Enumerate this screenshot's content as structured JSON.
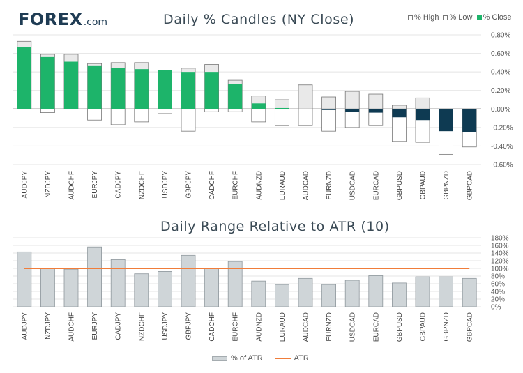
{
  "brand": {
    "logo_main": "FOREX",
    "logo_suffix": ".com"
  },
  "colors": {
    "up": "#1db46a",
    "down": "#0e3a52",
    "range_fill": "#cfd5d8",
    "range_stroke": "#8e979c",
    "atr_line": "#f07d3a",
    "grid": "#e4e4e4"
  },
  "chart_data": [
    {
      "type": "bar",
      "title": "Daily % Candles (NY Close)",
      "legend": [
        "% High",
        "% Low",
        "% Close"
      ],
      "legend_position": "top-right",
      "categories": [
        "AUDJPY",
        "NZDJPY",
        "AUDCHF",
        "EURJPY",
        "CADJPY",
        "NZDCHF",
        "USDJPY",
        "GBPJPY",
        "CADCHF",
        "EURCHF",
        "AUDNZD",
        "EURAUD",
        "AUDCAD",
        "EURNZD",
        "USDCAD",
        "EURCAD",
        "GBPUSD",
        "GBPAUD",
        "GBPNZD",
        "GBPCAD"
      ],
      "series": [
        {
          "name": "% High",
          "values": [
            0.73,
            0.59,
            0.59,
            0.49,
            0.5,
            0.5,
            0.42,
            0.44,
            0.48,
            0.31,
            0.14,
            0.1,
            0.26,
            0.13,
            0.19,
            0.16,
            0.04,
            0.12,
            0.0,
            0.0
          ]
        },
        {
          "name": "% Low",
          "values": [
            0.0,
            -0.04,
            0.0,
            -0.12,
            -0.17,
            -0.14,
            -0.05,
            -0.24,
            -0.03,
            -0.03,
            -0.14,
            -0.18,
            -0.18,
            -0.24,
            -0.2,
            -0.18,
            -0.35,
            -0.36,
            -0.49,
            -0.41
          ]
        },
        {
          "name": "% Close",
          "values": [
            0.67,
            0.56,
            0.51,
            0.47,
            0.44,
            0.43,
            0.42,
            0.4,
            0.4,
            0.27,
            0.06,
            0.01,
            0.0,
            -0.01,
            -0.03,
            -0.04,
            -0.09,
            -0.12,
            -0.24,
            -0.25
          ]
        }
      ],
      "yticks": [
        "0.80%",
        "0.60%",
        "0.40%",
        "0.20%",
        "0.00%",
        "-0.20%",
        "-0.40%",
        "-0.60%"
      ],
      "ylim": [
        -0.6,
        0.8
      ],
      "grid": true
    },
    {
      "type": "bar",
      "title": "Daily Range Relative to ATR (10)",
      "legend": [
        "% of ATR",
        "ATR"
      ],
      "legend_position": "bottom",
      "categories": [
        "AUDJPY",
        "NZDJPY",
        "AUDCHF",
        "EURJPY",
        "CADJPY",
        "NZDCHF",
        "USDJPY",
        "GBPJPY",
        "CADCHF",
        "EURCHF",
        "AUDNZD",
        "EURAUD",
        "AUDCAD",
        "EURNZD",
        "USDCAD",
        "EURCAD",
        "GBPUSD",
        "GBPAUD",
        "GBPNZD",
        "GBPCAD"
      ],
      "series": [
        {
          "name": "% of ATR",
          "values": [
            143,
            100,
            98,
            156,
            123,
            86,
            92,
            134,
            100,
            118,
            67,
            58,
            74,
            58,
            69,
            81,
            62,
            78,
            78,
            74
          ]
        },
        {
          "name": "ATR",
          "values": [
            100,
            100,
            100,
            100,
            100,
            100,
            100,
            100,
            100,
            100,
            100,
            100,
            100,
            100,
            100,
            100,
            100,
            100,
            100,
            100
          ]
        }
      ],
      "yticks": [
        "180%",
        "160%",
        "140%",
        "120%",
        "100%",
        "80%",
        "60%",
        "40%",
        "20%",
        "0%"
      ],
      "ylim": [
        0,
        180
      ],
      "grid": true
    }
  ]
}
